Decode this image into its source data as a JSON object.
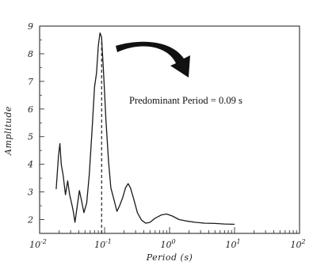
{
  "chart_data": {
    "type": "line",
    "title": "",
    "xlabel": "Period (s)",
    "ylabel": "Amplitude",
    "x_scale": "log",
    "xlim": [
      0.01,
      100
    ],
    "ylim": [
      1.5,
      9
    ],
    "x_ticks": [
      {
        "value": 0.01,
        "base": "10",
        "exp": "-2"
      },
      {
        "value": 0.1,
        "base": "10",
        "exp": "-1"
      },
      {
        "value": 1,
        "base": "10",
        "exp": "0"
      },
      {
        "value": 10,
        "base": "10",
        "exp": "1"
      },
      {
        "value": 100,
        "base": "10",
        "exp": "2"
      }
    ],
    "y_ticks": [
      "2",
      "3",
      "4",
      "5",
      "6",
      "7",
      "8",
      "9"
    ],
    "grid": false,
    "colors": {
      "line": "#1a1a1a",
      "arrow": "#111111",
      "marker_line": "#222222"
    },
    "series": [
      {
        "points": [
          [
            0.018,
            3.1
          ],
          [
            0.0195,
            4.3
          ],
          [
            0.0205,
            4.75
          ],
          [
            0.0215,
            4.0
          ],
          [
            0.023,
            3.6
          ],
          [
            0.025,
            2.9
          ],
          [
            0.027,
            3.4
          ],
          [
            0.029,
            2.9
          ],
          [
            0.031,
            2.6
          ],
          [
            0.033,
            2.3
          ],
          [
            0.035,
            1.9
          ],
          [
            0.038,
            2.5
          ],
          [
            0.041,
            3.05
          ],
          [
            0.044,
            2.7
          ],
          [
            0.048,
            2.25
          ],
          [
            0.053,
            2.6
          ],
          [
            0.058,
            3.6
          ],
          [
            0.064,
            5.2
          ],
          [
            0.07,
            6.8
          ],
          [
            0.075,
            7.3
          ],
          [
            0.08,
            8.3
          ],
          [
            0.085,
            8.75
          ],
          [
            0.09,
            8.6
          ],
          [
            0.097,
            7.2
          ],
          [
            0.105,
            5.6
          ],
          [
            0.115,
            4.1
          ],
          [
            0.125,
            3.15
          ],
          [
            0.14,
            2.7
          ],
          [
            0.155,
            2.3
          ],
          [
            0.17,
            2.5
          ],
          [
            0.19,
            2.8
          ],
          [
            0.21,
            3.15
          ],
          [
            0.23,
            3.3
          ],
          [
            0.25,
            3.15
          ],
          [
            0.28,
            2.75
          ],
          [
            0.32,
            2.25
          ],
          [
            0.37,
            1.98
          ],
          [
            0.43,
            1.87
          ],
          [
            0.5,
            1.9
          ],
          [
            0.6,
            2.05
          ],
          [
            0.75,
            2.17
          ],
          [
            0.9,
            2.2
          ],
          [
            1.1,
            2.13
          ],
          [
            1.4,
            2.0
          ],
          [
            1.8,
            1.95
          ],
          [
            2.5,
            1.9
          ],
          [
            3.5,
            1.87
          ],
          [
            5,
            1.86
          ],
          [
            7,
            1.84
          ],
          [
            10,
            1.83
          ]
        ]
      }
    ],
    "marker": {
      "x": 0.09
    },
    "annotation": "Predominant Period = 0.09 s"
  }
}
